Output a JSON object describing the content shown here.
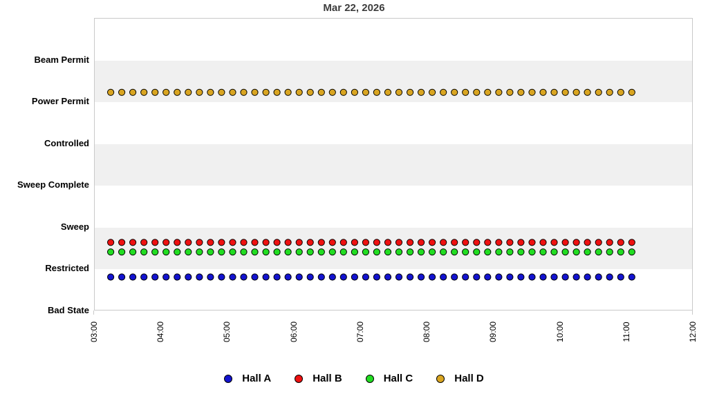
{
  "title": "Mar 22, 2026",
  "colors": {
    "band": "#f0f0f0",
    "plot_border": "#c9c9c9",
    "title_text": "#3d3d3d",
    "hall_a": "#1313cf",
    "hall_b": "#ee1111",
    "hall_c": "#22dd22",
    "hall_d": "#d9a521"
  },
  "chart_data": {
    "type": "scatter",
    "title": "Mar 22, 2026",
    "grid": "alternating-horizontal-bands",
    "legend_position": "bottom",
    "x_axis": {
      "label": "",
      "range_start": "03:00",
      "range_end": "12:00",
      "tick_labels": [
        "03:00",
        "04:00",
        "05:00",
        "06:00",
        "07:00",
        "08:00",
        "09:00",
        "10:00",
        "11:00",
        "12:00"
      ]
    },
    "y_axis": {
      "label": "",
      "levels": [
        "Bad State",
        "Restricted",
        "Sweep",
        "Sweep Complete",
        "Controlled",
        "Power Permit",
        "Beam Permit"
      ]
    },
    "times": [
      "03:15",
      "03:25",
      "03:35",
      "03:45",
      "03:55",
      "04:05",
      "04:15",
      "04:25",
      "04:35",
      "04:45",
      "04:55",
      "05:05",
      "05:15",
      "05:25",
      "05:35",
      "05:45",
      "05:55",
      "06:05",
      "06:15",
      "06:25",
      "06:35",
      "06:45",
      "06:55",
      "07:05",
      "07:15",
      "07:25",
      "07:35",
      "07:45",
      "07:55",
      "08:05",
      "08:15",
      "08:25",
      "08:35",
      "08:45",
      "08:55",
      "09:05",
      "09:15",
      "09:25",
      "09:35",
      "09:45",
      "09:55",
      "10:05",
      "10:15",
      "10:25",
      "10:35",
      "10:45",
      "10:55",
      "11:05"
    ],
    "series": [
      {
        "name": "Hall A",
        "color": "#1313cf",
        "state": "Restricted",
        "plot_offset_levels": -0.2
      },
      {
        "name": "Hall B",
        "color": "#ee1111",
        "state": "Restricted",
        "plot_offset_levels": 0.63
      },
      {
        "name": "Hall C",
        "color": "#22dd22",
        "state": "Restricted",
        "plot_offset_levels": 0.4
      },
      {
        "name": "Hall D",
        "color": "#d9a521",
        "state": "Power Permit",
        "plot_offset_levels": 0.22
      }
    ]
  }
}
